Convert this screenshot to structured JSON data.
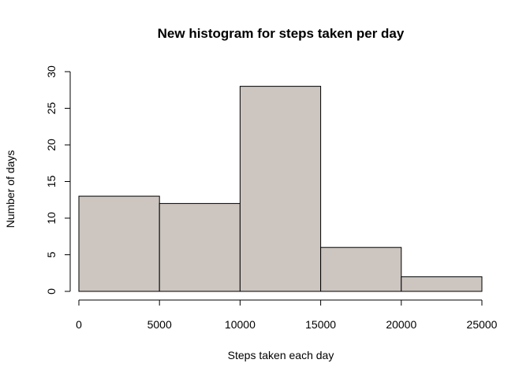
{
  "chart_data": {
    "type": "bar",
    "subtype": "histogram",
    "title": "New histogram for steps taken per day",
    "xlabel": "Steps taken each day",
    "ylabel": "Number of days",
    "bins": [
      {
        "start": 0,
        "end": 5000,
        "count": 13
      },
      {
        "start": 5000,
        "end": 10000,
        "count": 12
      },
      {
        "start": 10000,
        "end": 15000,
        "count": 28
      },
      {
        "start": 15000,
        "end": 20000,
        "count": 6
      },
      {
        "start": 20000,
        "end": 25000,
        "count": 2
      }
    ],
    "xlim": [
      0,
      25000
    ],
    "ylim": [
      0,
      30
    ],
    "xticks": [
      0,
      5000,
      10000,
      15000,
      20000,
      25000
    ],
    "yticks": [
      0,
      5,
      10,
      15,
      20,
      25,
      30
    ],
    "bar_color": "#CCC5C0",
    "grid": false
  }
}
